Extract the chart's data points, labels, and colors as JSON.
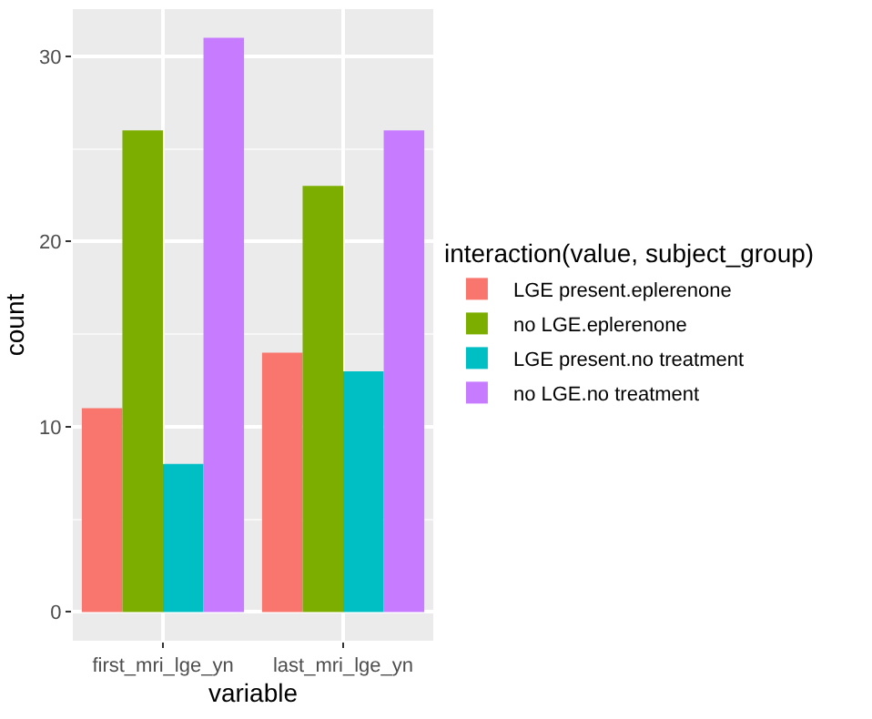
{
  "chart_data": {
    "type": "bar",
    "xlabel": "variable",
    "ylabel": "count",
    "legend_title": "interaction(value, subject_group)",
    "categories": [
      "first_mri_lge_yn",
      "last_mri_lge_yn"
    ],
    "series": [
      {
        "name": "LGE present.eplerenone",
        "color": "#f8766d",
        "values": [
          11,
          14
        ]
      },
      {
        "name": "no LGE.eplerenone",
        "color": "#7cae00",
        "values": [
          26,
          23
        ]
      },
      {
        "name": "LGE present.no treatment",
        "color": "#00bfc4",
        "values": [
          8,
          13
        ]
      },
      {
        "name": "no LGE.no treatment",
        "color": "#c77cff",
        "values": [
          31,
          26
        ]
      }
    ],
    "ylim": [
      -1.55,
      32.55
    ],
    "yticks": [
      0,
      10,
      20,
      30
    ],
    "grid": true,
    "legend": "right"
  }
}
